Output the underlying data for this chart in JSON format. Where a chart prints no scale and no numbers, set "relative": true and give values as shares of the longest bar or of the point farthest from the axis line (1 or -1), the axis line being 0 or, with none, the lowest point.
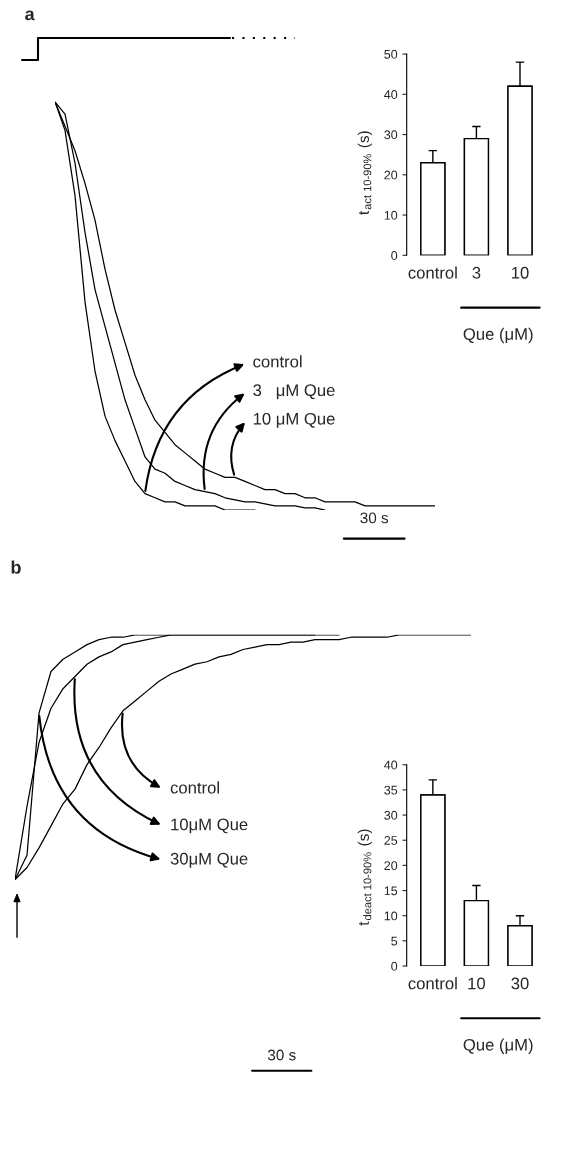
{
  "chart_data": [
    {
      "type": "line",
      "title": "a",
      "relative": true,
      "legend": "right",
      "annotations": [
        "30 s"
      ],
      "categories": [
        null,
        null,
        null,
        null,
        null,
        null,
        null,
        null,
        null,
        null,
        null,
        null,
        null,
        null,
        null,
        null,
        null,
        null,
        null,
        null,
        null,
        null,
        null,
        null,
        null,
        null,
        null,
        null,
        null,
        null,
        null,
        null,
        null,
        null,
        null,
        null,
        null,
        null,
        null
      ],
      "series": [
        {
          "name": "control",
          "color": "#000000",
          "values": [
            1.0,
            0.93,
            0.77,
            0.51,
            0.34,
            0.23,
            0.17,
            0.12,
            0.07,
            0.04,
            0.03,
            0.02,
            0.02,
            0.01,
            0.01,
            0.01,
            0.01,
            0.0,
            0.0,
            0.0,
            0.0,
            null,
            null,
            null,
            null,
            null,
            null,
            null,
            null,
            null,
            null,
            null,
            null,
            null,
            null,
            null,
            null,
            null,
            null
          ]
        },
        {
          "name": "3   μM Que",
          "color": "#000000",
          "values": [
            1.0,
            0.97,
            0.85,
            0.68,
            0.54,
            0.45,
            0.36,
            0.27,
            0.2,
            0.13,
            0.1,
            0.09,
            0.07,
            0.06,
            0.05,
            0.045,
            0.04,
            0.03,
            0.025,
            0.02,
            0.02,
            0.015,
            0.01,
            0.01,
            0.01,
            0.005,
            0.005,
            0.0,
            null,
            null,
            null,
            null,
            null,
            null,
            null,
            null,
            null,
            null,
            null
          ]
        },
        {
          "name": "10 μM Que",
          "color": "#000000",
          "values": [
            1.0,
            0.94,
            0.88,
            0.8,
            0.71,
            0.59,
            0.49,
            0.41,
            0.33,
            0.27,
            0.22,
            0.19,
            0.16,
            0.14,
            0.12,
            0.1,
            0.09,
            0.08,
            0.08,
            0.07,
            0.06,
            0.05,
            0.05,
            0.04,
            0.04,
            0.03,
            0.03,
            0.02,
            0.02,
            0.02,
            0.02,
            0.01,
            0.01,
            0.01,
            0.01,
            0.01,
            0.01,
            0.01,
            0.01
          ]
        }
      ]
    },
    {
      "type": "bar",
      "categories": [
        "control",
        "3",
        "10"
      ],
      "values": [
        23,
        29,
        42
      ],
      "errors": [
        3,
        3,
        6
      ],
      "color": "#ffffff",
      "ylim": [
        0,
        50
      ],
      "yticks": [
        0,
        10,
        20,
        30,
        40,
        50
      ],
      "ylabel": "t$_{act 10-90%}$ (s)",
      "xlabel": "Que (μM)"
    },
    {
      "type": "line",
      "title": "b",
      "relative": true,
      "legend": "left",
      "annotations": [
        "30 s"
      ],
      "categories": [
        null,
        null,
        null,
        null,
        null,
        null,
        null,
        null,
        null,
        null,
        null,
        null,
        null,
        null,
        null,
        null,
        null,
        null,
        null,
        null,
        null,
        null,
        null,
        null,
        null,
        null,
        null,
        null,
        null,
        null,
        null,
        null,
        null,
        null,
        null,
        null,
        null,
        null,
        null
      ],
      "series": [
        {
          "name": "control",
          "color": "#000000",
          "values": [
            0.0,
            0.05,
            0.13,
            0.22,
            0.31,
            0.37,
            0.47,
            0.54,
            0.62,
            0.69,
            0.73,
            0.77,
            0.81,
            0.84,
            0.86,
            0.88,
            0.89,
            0.91,
            0.92,
            0.94,
            0.95,
            0.96,
            0.96,
            0.97,
            0.97,
            0.98,
            0.98,
            0.98,
            0.99,
            0.99,
            0.99,
            0.99,
            1.0,
            1.0,
            1.0,
            1.0,
            1.0,
            1.0,
            1.0
          ]
        },
        {
          "name": "10μM Que",
          "color": "#000000",
          "values": [
            0.0,
            0.3,
            0.56,
            0.7,
            0.78,
            0.83,
            0.88,
            0.91,
            0.93,
            0.96,
            0.97,
            0.98,
            0.99,
            1.0,
            1.0,
            1.0,
            1.0,
            1.0,
            1.0,
            1.0,
            1.0,
            1.0,
            1.0,
            1.0,
            1.0,
            1.0,
            null,
            null,
            null,
            null,
            null,
            null,
            null,
            null,
            null,
            null,
            null,
            null,
            null
          ]
        },
        {
          "name": "30μM Que",
          "color": "#000000",
          "values": [
            0.0,
            0.1,
            0.68,
            0.85,
            0.9,
            0.93,
            0.96,
            0.98,
            0.99,
            0.99,
            1.0,
            1.0,
            1.0,
            1.0,
            1.0,
            1.0,
            1.0,
            1.0,
            1.0,
            1.0,
            1.0,
            1.0,
            1.0,
            1.0,
            1.0,
            1.0,
            1.0,
            1.0,
            null,
            null,
            null,
            null,
            null,
            null,
            null,
            null,
            null,
            null,
            null
          ]
        }
      ]
    },
    {
      "type": "bar",
      "categories": [
        "control",
        "10",
        "30"
      ],
      "values": [
        34,
        13,
        8
      ],
      "errors": [
        3,
        3,
        2
      ],
      "color": "#ffffff",
      "ylim": [
        0,
        40
      ],
      "yticks": [
        0,
        5,
        10,
        15,
        20,
        25,
        30,
        35,
        40
      ],
      "ylabel": "t$_{deact 10-90%}$ (s)",
      "xlabel": "Que (μM)"
    }
  ]
}
